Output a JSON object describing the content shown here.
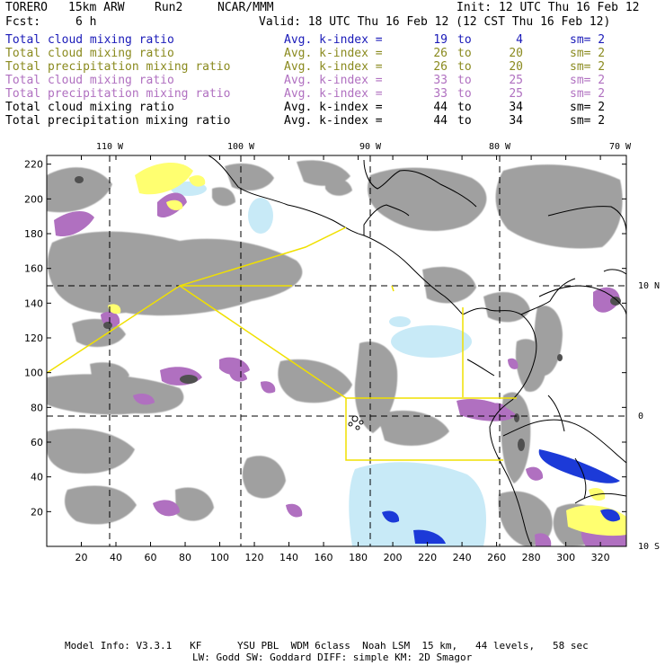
{
  "header": {
    "model": "TORERO",
    "resolution": "15km ARW",
    "run": "Run2",
    "org": "NCAR/MMM",
    "init": "Init: 12 UTC Thu 16 Feb 12",
    "fcst_label": "Fcst:",
    "fcst_value": "6 h",
    "valid": "Valid: 18 UTC Thu 16 Feb 12 (12 CST Thu 16 Feb 12)"
  },
  "legend": [
    {
      "name": "Total cloud mixing ratio",
      "label": "Avg. k-index =",
      "hi": "19",
      "to": "to",
      "lo": "4",
      "sm": "sm= 2",
      "color": "#1a1ab8"
    },
    {
      "name": "Total cloud mixing ratio",
      "label": "Avg. k-index =",
      "hi": "26",
      "to": "to",
      "lo": "20",
      "sm": "sm= 2",
      "color": "#8a8a1e"
    },
    {
      "name": "Total precipitation mixing ratio",
      "label": "Avg. k-index =",
      "hi": "26",
      "to": "to",
      "lo": "20",
      "sm": "sm= 2",
      "color": "#8a8a1e"
    },
    {
      "name": "Total cloud mixing ratio",
      "label": "Avg. k-index =",
      "hi": "33",
      "to": "to",
      "lo": "25",
      "sm": "sm= 2",
      "color": "#b070c0"
    },
    {
      "name": "Total precipitation mixing ratio",
      "label": "Avg. k-index =",
      "hi": "33",
      "to": "to",
      "lo": "25",
      "sm": "sm= 2",
      "color": "#b070c0"
    },
    {
      "name": "Total cloud mixing ratio",
      "label": "Avg. k-index =",
      "hi": "44",
      "to": "to",
      "lo": "34",
      "sm": "sm= 2",
      "color": "#000000"
    },
    {
      "name": "Total precipitation mixing ratio",
      "label": "Avg. k-index =",
      "hi": "44",
      "to": "to",
      "lo": "34",
      "sm": "sm= 2",
      "color": "#000000"
    }
  ],
  "map": {
    "lon_labels": [
      "110 W",
      "100 W",
      "90 W",
      "80 W",
      "70 W"
    ],
    "lat_labels": [
      "10 N",
      "0",
      "10 S"
    ],
    "x_ticks": [
      "20",
      "40",
      "60",
      "80",
      "100",
      "120",
      "140",
      "160",
      "180",
      "200",
      "220",
      "240",
      "260",
      "280",
      "300",
      "320"
    ],
    "y_ticks": [
      "20",
      "40",
      "60",
      "80",
      "100",
      "120",
      "140",
      "160",
      "180",
      "200",
      "220"
    ],
    "x_range": [
      0,
      335
    ],
    "y_range": [
      0,
      225
    ],
    "colors": {
      "gray": "#a0a0a0",
      "dark_gray": "#505050",
      "purple": "#b070c0",
      "yellow": "#ffff70",
      "light_blue": "#c8eaf7",
      "blue": "#1c3ad8",
      "yellow_line": "#f0e000"
    }
  },
  "footer": {
    "line1": "Model Info: V3.3.1   KF      YSU PBL  WDM 6class  Noah LSM  15 km,   44 levels,   58 sec",
    "line2": "LW: Godd SW: Goddard DIFF: simple KM: 2D Smagor"
  }
}
